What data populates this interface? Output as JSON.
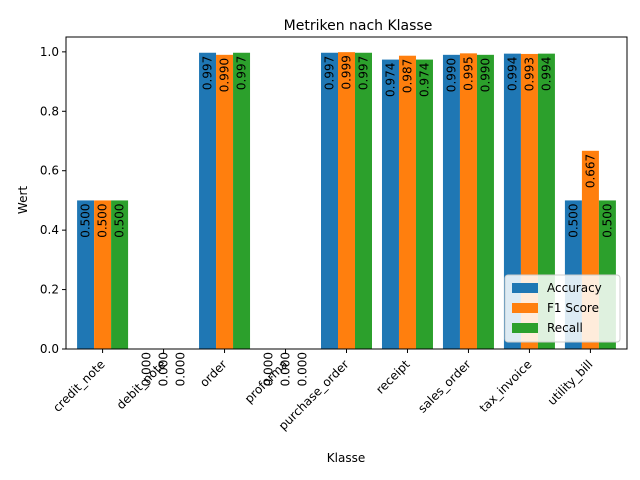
{
  "chart_data": {
    "type": "bar",
    "title": "Metriken nach Klasse",
    "xlabel": "Klasse",
    "ylabel": "Wert",
    "ylim": [
      0,
      1.05
    ],
    "yticks": [
      "0.0",
      "0.2",
      "0.4",
      "0.6",
      "0.8",
      "1.0"
    ],
    "categories": [
      "credit_note",
      "debit_note",
      "order",
      "proforma",
      "purchase_order",
      "receipt",
      "sales_order",
      "tax_invoice",
      "utility_bill"
    ],
    "series": [
      {
        "name": "Accuracy",
        "color": "#1f77b4",
        "values": [
          0.5,
          0.0,
          0.997,
          0.0,
          0.997,
          0.974,
          0.99,
          0.994,
          0.5
        ],
        "labels": [
          "0.500",
          "0.000",
          "0.997",
          "0.000",
          "0.997",
          "0.974",
          "0.990",
          "0.994",
          "0.500"
        ]
      },
      {
        "name": "F1 Score",
        "color": "#ff7f0e",
        "values": [
          0.5,
          0.0,
          0.99,
          0.0,
          0.999,
          0.987,
          0.995,
          0.993,
          0.667
        ],
        "labels": [
          "0.500",
          "0.000",
          "0.990",
          "0.000",
          "0.999",
          "0.987",
          "0.995",
          "0.993",
          "0.667"
        ]
      },
      {
        "name": "Recall",
        "color": "#2ca02c",
        "values": [
          0.5,
          0.0,
          0.997,
          0.0,
          0.997,
          0.974,
          0.99,
          0.994,
          0.5
        ],
        "labels": [
          "0.500",
          "0.000",
          "0.997",
          "0.000",
          "0.997",
          "0.974",
          "0.990",
          "0.994",
          "0.500"
        ]
      }
    ],
    "legend": "lower-right",
    "grid": false
  }
}
